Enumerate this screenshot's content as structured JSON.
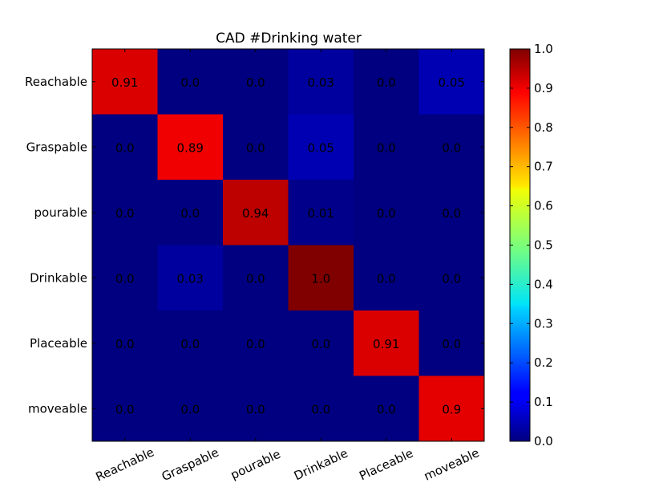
{
  "chart_data": {
    "type": "heatmap",
    "title": "CAD #Drinking water",
    "row_labels": [
      "Reachable",
      "Graspable",
      "pourable",
      "Drinkable",
      "Placeable",
      "moveable"
    ],
    "col_labels": [
      "Reachable",
      "Graspable",
      "pourable",
      "Drinkable",
      "Placeable",
      "moveable"
    ],
    "values": [
      [
        0.91,
        0.0,
        0.0,
        0.03,
        0.0,
        0.05
      ],
      [
        0.0,
        0.89,
        0.0,
        0.05,
        0.0,
        0.0
      ],
      [
        0.0,
        0.0,
        0.94,
        0.01,
        0.0,
        0.0
      ],
      [
        0.0,
        0.03,
        0.0,
        1.0,
        0.0,
        0.0
      ],
      [
        0.0,
        0.0,
        0.0,
        0.0,
        0.91,
        0.0
      ],
      [
        0.0,
        0.0,
        0.0,
        0.0,
        0.0,
        0.9
      ]
    ],
    "cell_labels": [
      [
        "0.91",
        "0.0",
        "0.0",
        "0.03",
        "0.0",
        "0.05"
      ],
      [
        "0.0",
        "0.89",
        "0.0",
        "0.05",
        "0.0",
        "0.0"
      ],
      [
        "0.0",
        "0.0",
        "0.94",
        "0.01",
        "0.0",
        "0.0"
      ],
      [
        "0.0",
        "0.03",
        "0.0",
        "1.0",
        "0.0",
        "0.0"
      ],
      [
        "0.0",
        "0.0",
        "0.0",
        "0.0",
        "0.91",
        "0.0"
      ],
      [
        "0.0",
        "0.0",
        "0.0",
        "0.0",
        "0.0",
        "0.9"
      ]
    ],
    "colormap": "jet",
    "colorbar": {
      "range": [
        0.0,
        1.0
      ],
      "ticks": [
        "0.0",
        "0.1",
        "0.2",
        "0.3",
        "0.4",
        "0.5",
        "0.6",
        "0.7",
        "0.8",
        "0.9",
        "1.0"
      ]
    },
    "xtick_rotation": -25
  }
}
